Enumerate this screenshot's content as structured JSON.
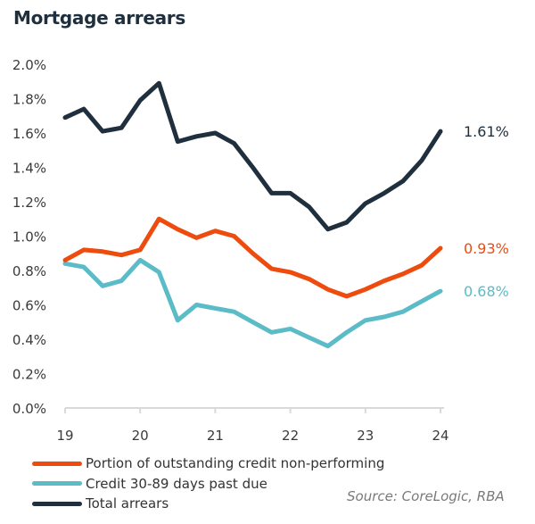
{
  "chart_data": {
    "type": "line",
    "title": "Mortgage arrears",
    "xlabel": "",
    "ylabel": "",
    "x_ticks": [
      "19",
      "20",
      "21",
      "22",
      "23",
      "24"
    ],
    "x_range": [
      19,
      24
    ],
    "y_ticks": [
      "0.0%",
      "0.2%",
      "0.4%",
      "0.6%",
      "0.8%",
      "1.0%",
      "1.2%",
      "1.4%",
      "1.6%",
      "1.8%",
      "2.0%"
    ],
    "ylim": [
      0,
      2.0
    ],
    "grid": false,
    "x": [
      19.0,
      19.25,
      19.5,
      19.75,
      20.0,
      20.25,
      20.5,
      20.75,
      21.0,
      21.25,
      21.5,
      21.75,
      22.0,
      22.25,
      22.5,
      22.75,
      23.0,
      23.25,
      23.5,
      23.75,
      24.0
    ],
    "series": [
      {
        "name": "Portion of outstanding credit non-performing",
        "color": "#EE4B0E",
        "values": [
          0.86,
          0.92,
          0.91,
          0.89,
          0.92,
          1.1,
          1.04,
          0.99,
          1.03,
          1.0,
          0.9,
          0.81,
          0.79,
          0.75,
          0.69,
          0.65,
          0.69,
          0.74,
          0.78,
          0.83,
          0.93
        ],
        "end_label": "0.93%"
      },
      {
        "name": "Credit 30-89 days past due",
        "color": "#5BBCC8",
        "values": [
          0.84,
          0.82,
          0.71,
          0.74,
          0.86,
          0.79,
          0.51,
          0.6,
          0.58,
          0.56,
          0.5,
          0.44,
          0.46,
          0.41,
          0.36,
          0.44,
          0.51,
          0.53,
          0.56,
          0.62,
          0.68
        ],
        "end_label": "0.68%"
      },
      {
        "name": "Total arrears",
        "color": "#1F2F3D",
        "values": [
          1.69,
          1.74,
          1.61,
          1.63,
          1.79,
          1.89,
          1.55,
          1.58,
          1.6,
          1.54,
          1.4,
          1.25,
          1.25,
          1.17,
          1.04,
          1.08,
          1.19,
          1.25,
          1.32,
          1.44,
          1.61
        ],
        "end_label": "1.61%"
      }
    ],
    "legend_position": "bottom-left",
    "source": "Source:  CoreLogic, RBA"
  }
}
